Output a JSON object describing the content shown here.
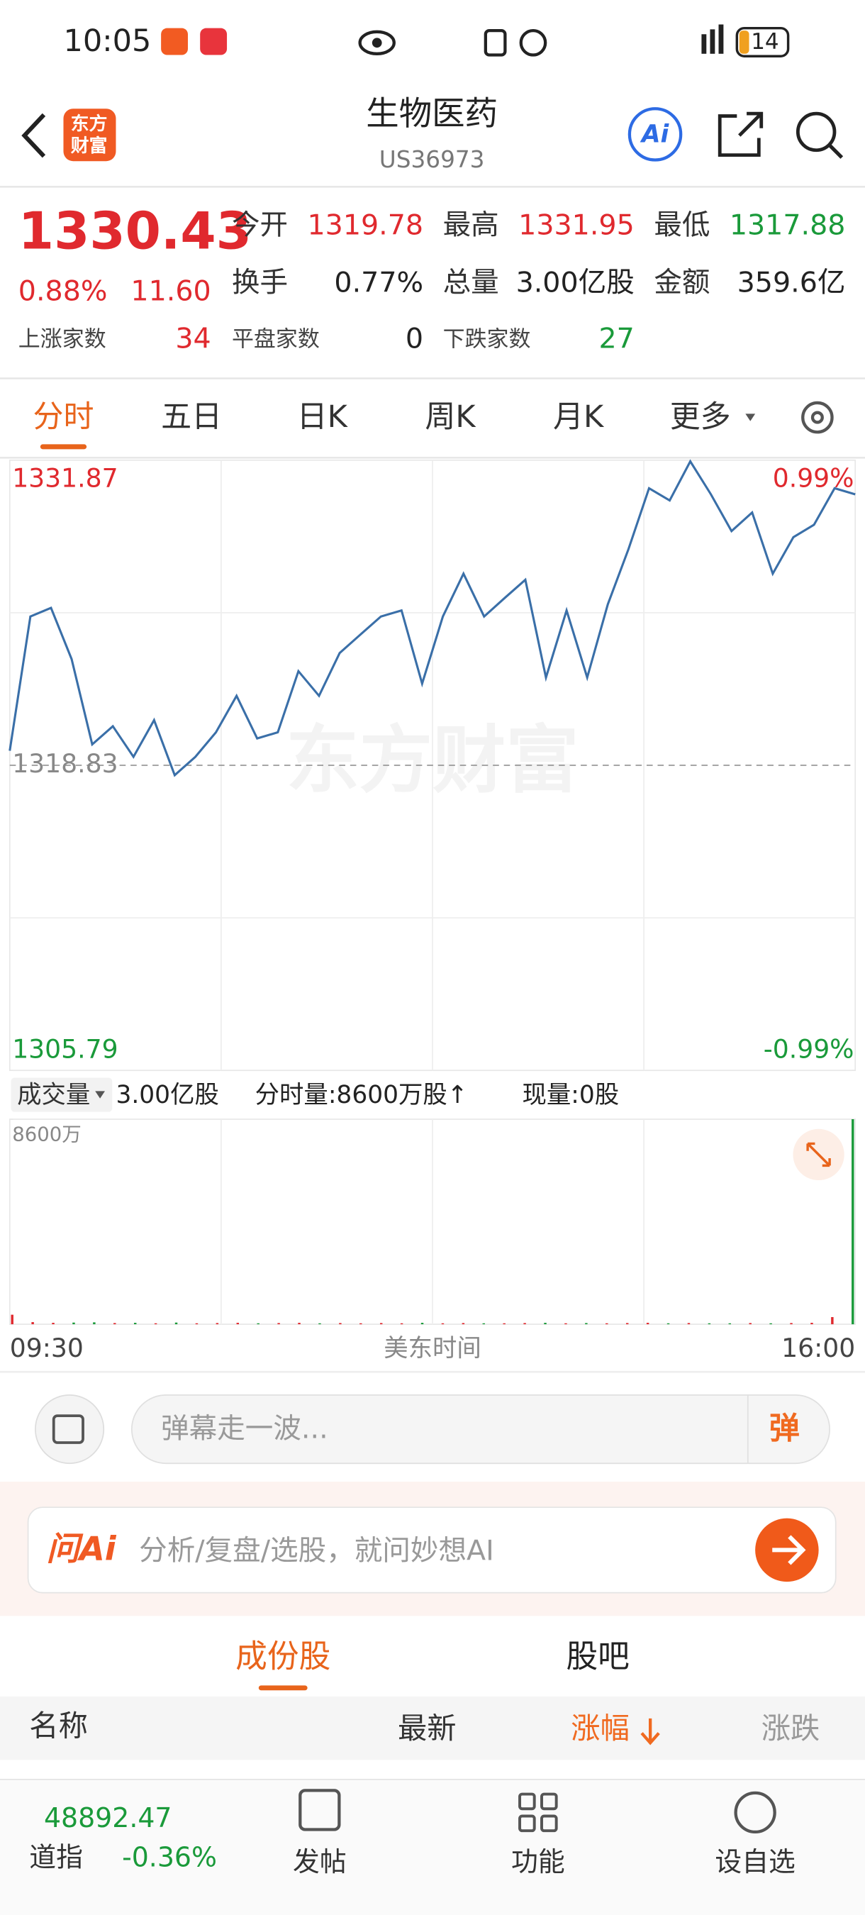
{
  "status": {
    "time": "10:05",
    "battery": "14"
  },
  "header": {
    "title": "生物医药",
    "code": "US36973",
    "logo_top": "东方",
    "logo_bottom": "财富",
    "ai": "Ai"
  },
  "quote": {
    "price": "1330.43",
    "change_pct": "0.88%",
    "change": "11.60",
    "fields": [
      {
        "label": "今开",
        "value": "1319.78"
      },
      {
        "label": "最高",
        "value": "1331.95"
      },
      {
        "label": "最低",
        "value": "1317.88"
      },
      {
        "label": "换手",
        "value": "0.77%"
      },
      {
        "label": "总量",
        "value": "3.00亿股"
      },
      {
        "label": "金额",
        "value": "359.6亿"
      }
    ],
    "breadth": [
      {
        "label": "上涨家数",
        "value": "34"
      },
      {
        "label": "平盘家数",
        "value": "0"
      },
      {
        "label": "下跌家数",
        "value": "27"
      }
    ]
  },
  "tabs": [
    "分时",
    "五日",
    "日K",
    "周K",
    "月K",
    "更多"
  ],
  "chart_data": [
    {
      "type": "line",
      "watermark": "东方财富",
      "color": "#3a6fa8",
      "categories": [
        "09:30",
        null,
        null,
        null,
        null,
        null,
        null,
        null,
        null,
        null,
        null,
        null,
        null,
        null,
        null,
        null,
        null,
        null,
        null,
        null,
        null,
        null,
        null,
        null,
        null,
        null,
        null,
        null,
        null,
        null,
        null,
        null,
        null,
        null,
        null,
        null,
        null,
        null,
        null,
        null,
        null,
        "16:00"
      ],
      "values": [
        1319.45,
        1325.19,
        1325.56,
        1323.37,
        1319.72,
        1320.5,
        1319.19,
        1320.76,
        1318.41,
        1319.19,
        1320.24,
        1321.8,
        1319.98,
        1320.24,
        1322.85,
        1321.8,
        1323.63,
        1324.41,
        1325.19,
        1325.45,
        1322.32,
        1325.19,
        1327.02,
        1325.19,
        1325.98,
        1326.76,
        1322.58,
        1325.45,
        1322.58,
        1325.71,
        1328.06,
        1330.67,
        1330.15,
        1331.82,
        1330.41,
        1328.84,
        1329.63,
        1327.02,
        1328.58,
        1329.11,
        1330.67,
        1330.41
      ],
      "ylim": [
        1305.79,
        1331.87
      ],
      "yticks": [
        1331.87,
        1318.83,
        1305.79
      ],
      "y2lim": [
        -0.99,
        0.99
      ],
      "y2ticks": [
        {
          "value": 0.99,
          "label": "0.99%"
        },
        {
          "value": -0.99,
          "label": "-0.99%"
        }
      ]
    },
    {
      "type": "bar",
      "title": "成交量",
      "total": "3.00亿股",
      "period_volume": "分时量:8600万股↑",
      "current": "现量:0股",
      "x_label": "美东时间",
      "categories": [
        "09:30",
        null,
        null,
        null,
        null,
        null,
        null,
        null,
        null,
        null,
        null,
        null,
        null,
        null,
        null,
        null,
        null,
        null,
        null,
        null,
        null,
        null,
        null,
        null,
        null,
        null,
        null,
        null,
        null,
        null,
        null,
        null,
        null,
        null,
        null,
        null,
        null,
        null,
        null,
        null,
        null,
        "16:00"
      ],
      "values": [
        400,
        90,
        60,
        70,
        80,
        50,
        60,
        40,
        70,
        40,
        50,
        60,
        40,
        50,
        60,
        40,
        50,
        40,
        50,
        40,
        60,
        40,
        50,
        40,
        40,
        50,
        60,
        40,
        50,
        40,
        50,
        60,
        40,
        50,
        40,
        40,
        50,
        40,
        50,
        60,
        300,
        8600
      ],
      "ylim": [
        0,
        8600
      ],
      "yticks": [
        {
          "value": 8600,
          "label": "8600万"
        }
      ]
    }
  ],
  "danmu": {
    "placeholder": "弹幕走一波...",
    "button": "弹"
  },
  "ai_bar": {
    "brand": "问Ai",
    "placeholder": "分析/复盘/选股，就问妙想AI"
  },
  "list_tabs": [
    "成份股",
    "股吧"
  ],
  "table_header": [
    "名称",
    "最新",
    "涨幅",
    "涨跌"
  ],
  "footer": {
    "index_value": "48892.47",
    "index_name": "道指",
    "index_pct": "-0.36%",
    "nav": [
      "发帖",
      "功能",
      "设自选"
    ]
  }
}
